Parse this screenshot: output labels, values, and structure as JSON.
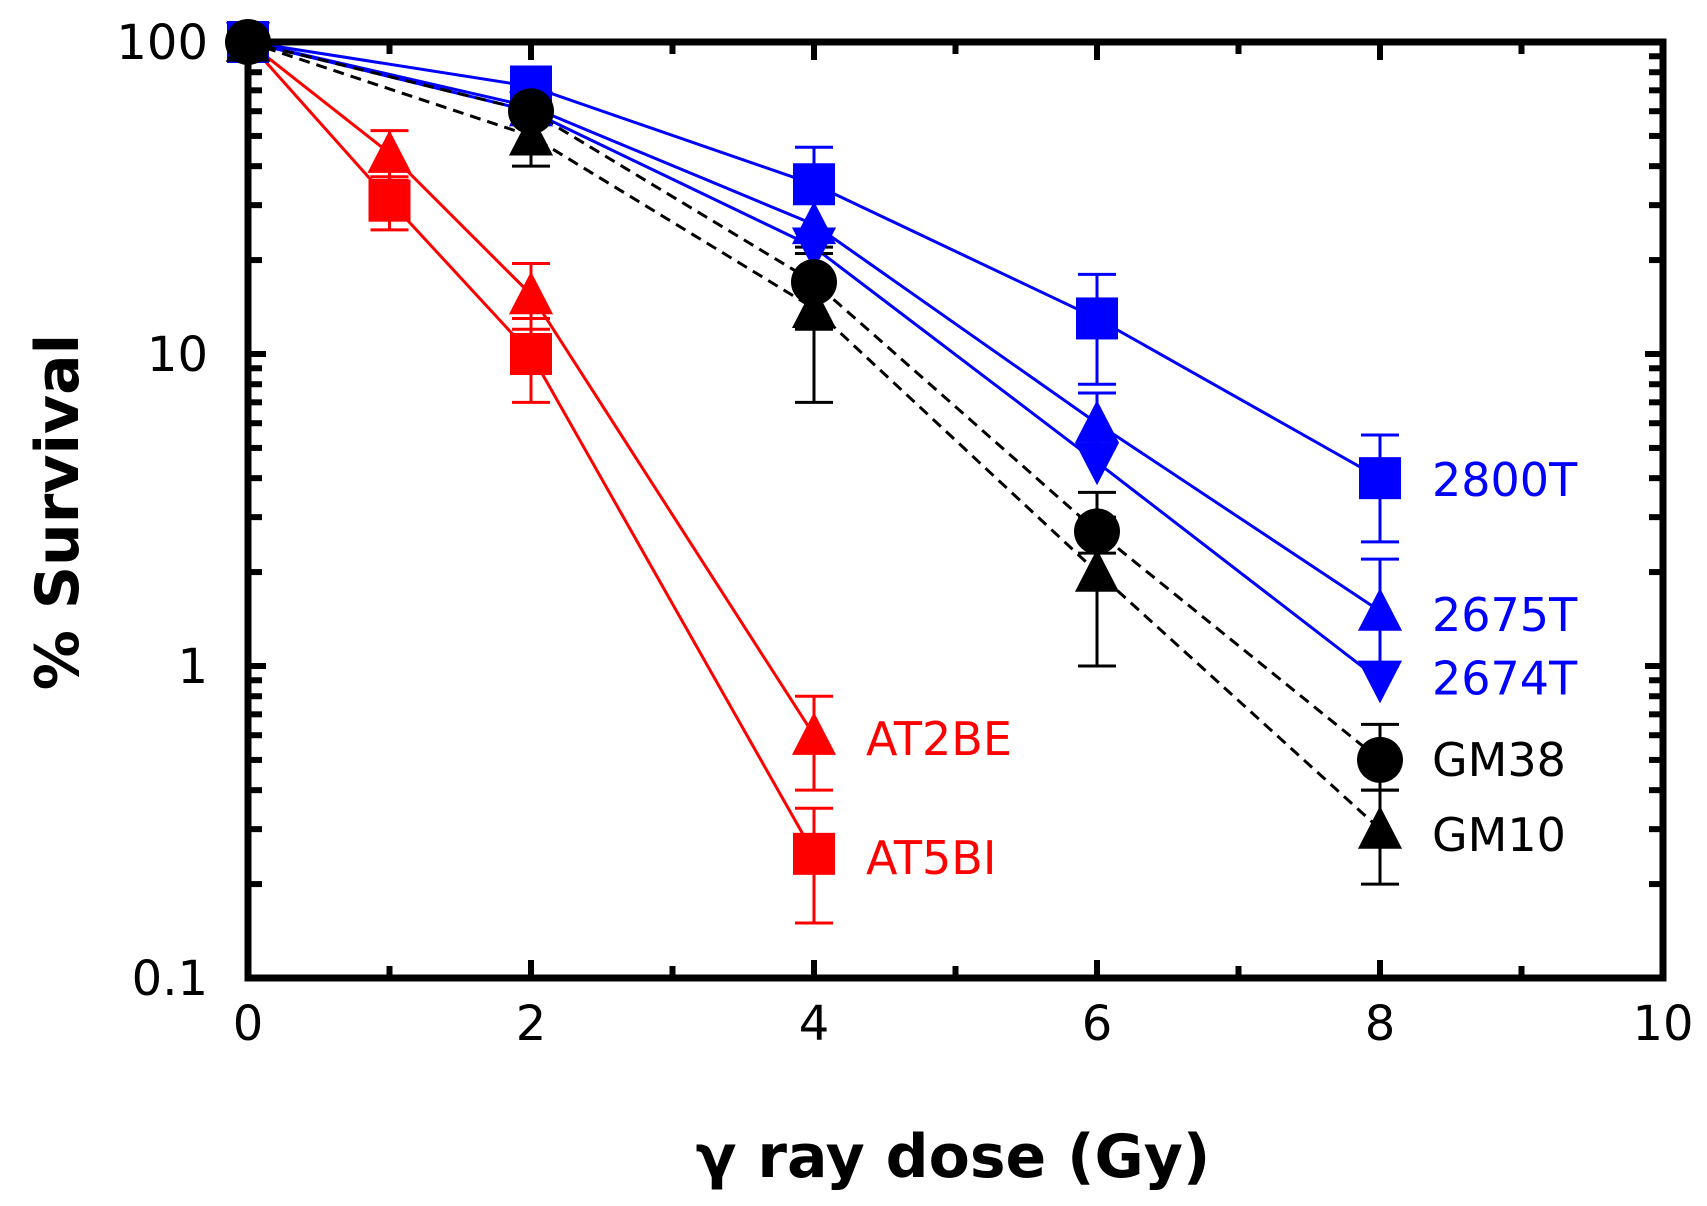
{
  "chart_data": {
    "type": "line",
    "title": "",
    "xlabel": "γ ray dose (Gy)",
    "ylabel": "% Survival",
    "xlim": [
      0,
      10
    ],
    "ylim": [
      0.1,
      100
    ],
    "yscale": "log",
    "x_ticks": [
      0,
      2,
      4,
      6,
      8,
      10
    ],
    "x_tick_labels": [
      "0",
      "2",
      "4",
      "6",
      "8",
      "10"
    ],
    "y_ticks": [
      0.1,
      1,
      10,
      100
    ],
    "y_tick_labels": [
      "0.1",
      "1",
      "10",
      "100"
    ],
    "grid": false,
    "legend": "inline labels at right end of each series",
    "series": [
      {
        "name": "AT5BI",
        "color": "#ff0000",
        "marker": "square",
        "line": "solid",
        "points": [
          {
            "x": 0,
            "y": 100
          },
          {
            "x": 1,
            "y": 31,
            "err_low": 25,
            "err_high": 37
          },
          {
            "x": 2,
            "y": 10,
            "err_low": 7,
            "err_high": 13
          },
          {
            "x": 4,
            "y": 0.25,
            "err_low": 0.15,
            "err_high": 0.35
          }
        ]
      },
      {
        "name": "AT2BE",
        "color": "#ff0000",
        "marker": "triangle-up",
        "line": "solid",
        "points": [
          {
            "x": 0,
            "y": 100
          },
          {
            "x": 1,
            "y": 44,
            "err_low": 36,
            "err_high": 52
          },
          {
            "x": 2,
            "y": 15.5,
            "err_low": 12,
            "err_high": 19.5
          },
          {
            "x": 4,
            "y": 0.6,
            "err_low": 0.4,
            "err_high": 0.8
          }
        ]
      },
      {
        "name": "2800T",
        "color": "#0000ff",
        "marker": "square",
        "line": "solid",
        "points": [
          {
            "x": 0,
            "y": 100
          },
          {
            "x": 2,
            "y": 72
          },
          {
            "x": 4,
            "y": 35,
            "err_low": 25,
            "err_high": 46
          },
          {
            "x": 6,
            "y": 13,
            "err_low": 8,
            "err_high": 18
          },
          {
            "x": 8,
            "y": 4,
            "err_low": 2.5,
            "err_high": 5.5
          }
        ]
      },
      {
        "name": "2675T",
        "color": "#0000ff",
        "marker": "triangle-up",
        "line": "solid",
        "points": [
          {
            "x": 0,
            "y": 100
          },
          {
            "x": 2,
            "y": 62
          },
          {
            "x": 4,
            "y": 26
          },
          {
            "x": 6,
            "y": 6,
            "err_low": 5,
            "err_high": 7.5
          },
          {
            "x": 8,
            "y": 1.5,
            "err_low": 1,
            "err_high": 2.2
          }
        ]
      },
      {
        "name": "2674T",
        "color": "#0000ff",
        "marker": "triangle-down",
        "line": "solid",
        "points": [
          {
            "x": 0,
            "y": 100
          },
          {
            "x": 2,
            "y": 60
          },
          {
            "x": 4,
            "y": 22
          },
          {
            "x": 6,
            "y": 4.5
          },
          {
            "x": 8,
            "y": 0.9
          }
        ]
      },
      {
        "name": "GM38",
        "color": "#000000",
        "marker": "circle",
        "line": "dashed",
        "points": [
          {
            "x": 0,
            "y": 100
          },
          {
            "x": 2,
            "y": 60
          },
          {
            "x": 4,
            "y": 17,
            "err_low": 12,
            "err_high": 22
          },
          {
            "x": 6,
            "y": 2.7,
            "err_low": 2.3,
            "err_high": 3.6
          },
          {
            "x": 8,
            "y": 0.5,
            "err_low": 0.4,
            "err_high": 0.65
          }
        ]
      },
      {
        "name": "GM10",
        "color": "#000000",
        "marker": "triangle-up",
        "line": "dashed",
        "points": [
          {
            "x": 0,
            "y": 100
          },
          {
            "x": 2,
            "y": 50,
            "err_low": 40,
            "err_high": 60
          },
          {
            "x": 4,
            "y": 14,
            "err_low": 7,
            "err_high": 21
          },
          {
            "x": 6,
            "y": 2,
            "err_low": 1,
            "err_high": 3
          },
          {
            "x": 8,
            "y": 0.3,
            "err_low": 0.2,
            "err_high": 0.4
          }
        ]
      }
    ]
  }
}
